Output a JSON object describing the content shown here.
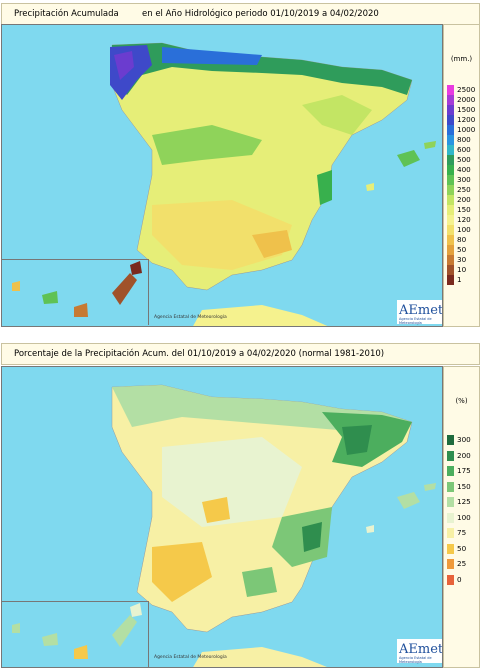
{
  "top_panel": {
    "title_left": "Precipitación Acumulada",
    "title_right": "en el Año Hidrológico  periodo 01/10/2019 a 04/02/2020",
    "legend_unit": "(mm.)",
    "legend": [
      {
        "label": "2500",
        "color": "#e83be0"
      },
      {
        "label": "2000",
        "color": "#a53bd6"
      },
      {
        "label": "1500",
        "color": "#6b3ccf"
      },
      {
        "label": "1200",
        "color": "#3e49c9"
      },
      {
        "label": "1000",
        "color": "#2a6fd9"
      },
      {
        "label": "800",
        "color": "#2a95e0"
      },
      {
        "label": "600",
        "color": "#32b7c8"
      },
      {
        "label": "500",
        "color": "#2f9c5b"
      },
      {
        "label": "400",
        "color": "#38b04d"
      },
      {
        "label": "300",
        "color": "#5fc255"
      },
      {
        "label": "250",
        "color": "#8fd35a"
      },
      {
        "label": "200",
        "color": "#c3e564"
      },
      {
        "label": "150",
        "color": "#e6ee78"
      },
      {
        "label": "120",
        "color": "#f5f28e"
      },
      {
        "label": "100",
        "color": "#f2e06b"
      },
      {
        "label": "80",
        "color": "#efc14b"
      },
      {
        "label": "50",
        "color": "#e3a13c"
      },
      {
        "label": "30",
        "color": "#c77a32"
      },
      {
        "label": "10",
        "color": "#a0522a"
      },
      {
        "label": "1",
        "color": "#7a2a1e"
      }
    ]
  },
  "bottom_panel": {
    "title": "Porcentaje de la Precipitación Acum. del 01/10/2019 a  04/02/2020  (normal 1981-2010)",
    "legend_unit": "(%)",
    "legend": [
      {
        "label": "300",
        "color": "#1f6b3d"
      },
      {
        "label": "200",
        "color": "#2f8e4e"
      },
      {
        "label": "175",
        "color": "#4cae5e"
      },
      {
        "label": "150",
        "color": "#7cc777"
      },
      {
        "label": "125",
        "color": "#b3dfa4"
      },
      {
        "label": "100",
        "color": "#e8f3d0"
      },
      {
        "label": "75",
        "color": "#f7f0a5"
      },
      {
        "label": "50",
        "color": "#f5c94a"
      },
      {
        "label": "25",
        "color": "#ef9a3a"
      },
      {
        "label": "0",
        "color": "#e7633a"
      }
    ]
  },
  "credit": "Agencia Estatal de Meteorología",
  "logo_text": "AEmet",
  "logo_subtext": "Agencia Estatal de Meteorología"
}
